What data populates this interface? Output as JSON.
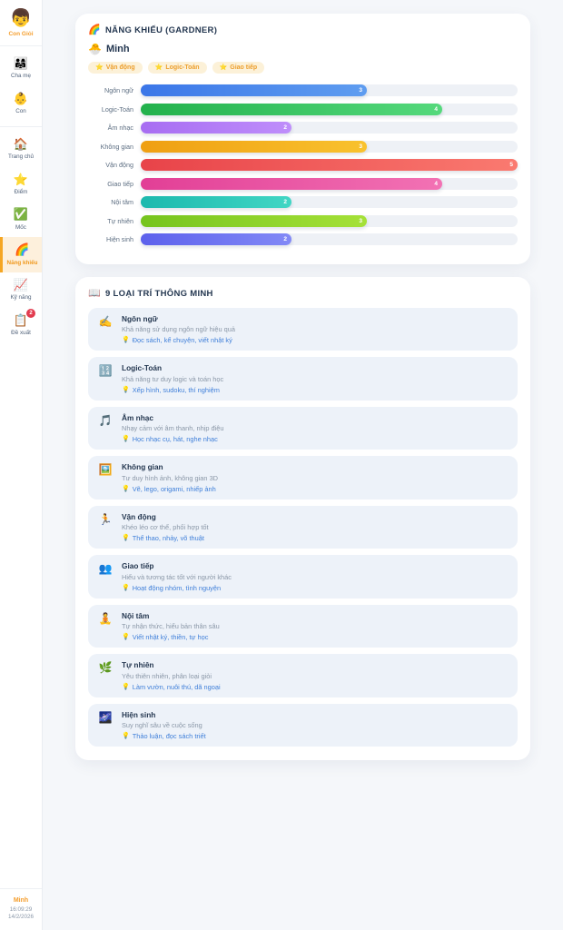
{
  "colors": {
    "accent_orange": "#f5a623",
    "active_item_bg": "#fdf0dc",
    "badge_red": "#e23c4f",
    "navy_text": "#243750",
    "tip_blue": "#3f7fd9",
    "chip_bg": "#fcf1d8",
    "chip_text": "#ec9f2e",
    "track_gray": "#eef1f6",
    "list_item_bg": "#edf2f9",
    "page_bg": "#f5f7fa"
  },
  "sidebar": {
    "logo": {
      "icon": "👦",
      "label": "Con Giỏi"
    },
    "groups": [
      {
        "items": [
          {
            "key": "cha-me",
            "icon_name": "family-icon",
            "icon": "👨‍👩‍👧",
            "label": "Cha mẹ"
          },
          {
            "key": "con",
            "icon_name": "baby-icon",
            "icon": "👶",
            "label": "Con"
          }
        ]
      },
      {
        "items": [
          {
            "key": "trang-chu",
            "icon_name": "home-icon",
            "icon": "🏠",
            "label": "Trang chủ"
          },
          {
            "key": "diem",
            "icon_name": "star-icon",
            "icon": "⭐",
            "label": "Điểm"
          },
          {
            "key": "moc",
            "icon_name": "checkmark-icon",
            "icon": "✅",
            "label": "Mốc"
          },
          {
            "key": "nang-khieu",
            "icon_name": "rainbow-icon",
            "icon": "🌈",
            "label": "Năng khiếu",
            "active": true
          },
          {
            "key": "ky-nang",
            "icon_name": "chart-up-icon",
            "icon": "📈",
            "label": "Kỹ năng"
          },
          {
            "key": "de-xuat",
            "icon_name": "clipboard-icon",
            "icon": "📋",
            "label": "Đề xuất",
            "badge": "2"
          }
        ]
      }
    ],
    "footer": {
      "name": "Minh",
      "time": "16:09:29",
      "date": "14/2/2026"
    }
  },
  "gardner": {
    "title_icon": "🌈",
    "title": "NĂNG KHIẾU (GARDNER)",
    "child_icon": "🐣",
    "child_name": "Minh",
    "strength_chips": [
      {
        "icon": "⭐",
        "label": "Vận động"
      },
      {
        "icon": "⭐",
        "label": "Logic-Toán"
      },
      {
        "icon": "⭐",
        "label": "Giao tiếp"
      }
    ],
    "chart": {
      "type": "bar",
      "max": 5,
      "rows": [
        {
          "label": "Ngôn ngữ",
          "value": 3,
          "color_start": "#3b76e8",
          "color_end": "#5f9df0"
        },
        {
          "label": "Logic-Toán",
          "value": 4,
          "color_start": "#22b14c",
          "color_end": "#55d97c"
        },
        {
          "label": "Âm nhạc",
          "value": 2,
          "color_start": "#a76df2",
          "color_end": "#bf8efb"
        },
        {
          "label": "Không gian",
          "value": 3,
          "color_start": "#ef9f12",
          "color_end": "#f9c22e"
        },
        {
          "label": "Vận động",
          "value": 5,
          "color_start": "#e84349",
          "color_end": "#fa7a70"
        },
        {
          "label": "Giao tiếp",
          "value": 4,
          "color_start": "#e23f96",
          "color_end": "#f272b4"
        },
        {
          "label": "Nội tâm",
          "value": 2,
          "color_start": "#1cb9ae",
          "color_end": "#41d6c4"
        },
        {
          "label": "Tự nhiên",
          "value": 3,
          "color_start": "#76c41e",
          "color_end": "#a5e138"
        },
        {
          "label": "Hiện sinh",
          "value": 2,
          "color_start": "#5d61ec",
          "color_end": "#8289f6"
        }
      ]
    }
  },
  "intelligences": {
    "title_icon": "📖",
    "title": "9 LOẠI TRÍ THÔNG MINH",
    "tip_icon": "💡",
    "items": [
      {
        "icon_name": "writing-hand-icon",
        "icon": "✍️",
        "name": "Ngôn ngữ",
        "desc": "Khả năng sử dụng ngôn ngữ hiệu quả",
        "tip": "Đọc sách, kể chuyện, viết nhật ký"
      },
      {
        "icon_name": "numbers-icon",
        "icon": "🔢",
        "name": "Logic-Toán",
        "desc": "Khả năng tư duy logic và toán học",
        "tip": "Xếp hình, sudoku, thí nghiệm"
      },
      {
        "icon_name": "music-notes-icon",
        "icon": "🎵",
        "name": "Âm nhạc",
        "desc": "Nhạy cảm với âm thanh, nhịp điệu",
        "tip": "Học nhạc cụ, hát, nghe nhạc"
      },
      {
        "icon_name": "framed-picture-icon",
        "icon": "🖼️",
        "name": "Không gian",
        "desc": "Tư duy hình ảnh, không gian 3D",
        "tip": "Vẽ, lego, origami, nhiếp ảnh"
      },
      {
        "icon_name": "runner-icon",
        "icon": "🏃",
        "name": "Vận động",
        "desc": "Khéo léo cơ thể, phối hợp tốt",
        "tip": "Thể thao, nhảy, võ thuật"
      },
      {
        "icon_name": "people-icon",
        "icon": "👥",
        "name": "Giao tiếp",
        "desc": "Hiểu và tương tác tốt với người khác",
        "tip": "Hoạt động nhóm, tình nguyện"
      },
      {
        "icon_name": "meditation-icon",
        "icon": "🧘",
        "name": "Nội tâm",
        "desc": "Tự nhận thức, hiểu bản thân sâu",
        "tip": "Viết nhật ký, thiền, tự học"
      },
      {
        "icon_name": "herb-icon",
        "icon": "🌿",
        "name": "Tự nhiên",
        "desc": "Yêu thiên nhiên, phân loại giỏi",
        "tip": "Làm vườn, nuôi thú, dã ngoại"
      },
      {
        "icon_name": "milky-way-icon",
        "icon": "🌌",
        "name": "Hiện sinh",
        "desc": "Suy nghĩ sâu về cuộc sống",
        "tip": "Thảo luận, đọc sách triết"
      }
    ]
  }
}
